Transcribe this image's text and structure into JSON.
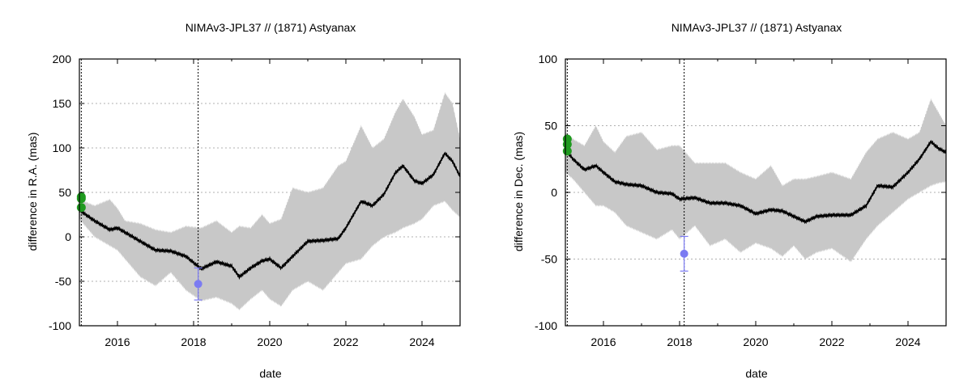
{
  "chart_data": [
    {
      "type": "line",
      "title": "NIMAv3-JPL37 // (1871) Astyanax",
      "xlabel": "date",
      "ylabel": "difference in R.A. (mas)",
      "xlim": [
        2015.0,
        2025.0
      ],
      "ylim": [
        -100,
        200
      ],
      "xticks": [
        2016,
        2018,
        2020,
        2022,
        2024
      ],
      "yticks": [
        -100,
        -50,
        0,
        50,
        100,
        150,
        200
      ],
      "grid": true,
      "vlines": [
        2015.05,
        2018.12
      ],
      "curve_x": [
        2015.0,
        2015.4,
        2015.8,
        2016.0,
        2016.2,
        2016.6,
        2017.0,
        2017.4,
        2017.8,
        2018.2,
        2018.6,
        2019.0,
        2019.2,
        2019.5,
        2019.8,
        2020.0,
        2020.3,
        2020.6,
        2021.0,
        2021.4,
        2021.8,
        2022.0,
        2022.4,
        2022.7,
        2023.0,
        2023.3,
        2023.5,
        2023.8,
        2024.0,
        2024.3,
        2024.6,
        2024.8,
        2025.0
      ],
      "curve_y": [
        30,
        18,
        8,
        10,
        5,
        -5,
        -15,
        -16,
        -22,
        -36,
        -28,
        -33,
        -45,
        -35,
        -27,
        -25,
        -35,
        -22,
        -5,
        -4,
        -2,
        10,
        40,
        35,
        48,
        72,
        80,
        63,
        60,
        70,
        94,
        85,
        68
      ],
      "band_upper": [
        42,
        35,
        42,
        32,
        18,
        15,
        8,
        5,
        12,
        10,
        18,
        5,
        12,
        10,
        25,
        15,
        20,
        55,
        50,
        55,
        80,
        85,
        125,
        100,
        110,
        140,
        155,
        135,
        115,
        120,
        162,
        150,
        110
      ],
      "band_lower": [
        20,
        0,
        -10,
        -15,
        -25,
        -45,
        -55,
        -40,
        -60,
        -72,
        -68,
        -75,
        -82,
        -70,
        -60,
        -70,
        -78,
        -60,
        -50,
        -60,
        -40,
        -30,
        -25,
        -10,
        0,
        5,
        10,
        15,
        20,
        35,
        40,
        30,
        22
      ],
      "observations_green": [
        {
          "x": 2015.05,
          "y": 45
        },
        {
          "x": 2015.05,
          "y": 43
        },
        {
          "x": 2015.05,
          "y": 33
        }
      ],
      "observations_blue": [
        {
          "x": 2018.12,
          "y": -53,
          "err": 18
        }
      ]
    },
    {
      "type": "line",
      "title": "NIMAv3-JPL37 // (1871) Astyanax",
      "xlabel": "date",
      "ylabel": "difference in Dec. (mas)",
      "xlim": [
        2015.0,
        2025.0
      ],
      "ylim": [
        -100,
        100
      ],
      "xticks": [
        2016,
        2018,
        2020,
        2022,
        2024
      ],
      "yticks": [
        -100,
        -50,
        0,
        50,
        100
      ],
      "grid": true,
      "vlines": [
        2015.05,
        2018.12
      ],
      "curve_x": [
        2015.0,
        2015.2,
        2015.5,
        2015.8,
        2016.0,
        2016.3,
        2016.6,
        2017.0,
        2017.4,
        2017.8,
        2018.0,
        2018.4,
        2018.8,
        2019.2,
        2019.6,
        2020.0,
        2020.4,
        2020.7,
        2021.0,
        2021.3,
        2021.6,
        2022.0,
        2022.5,
        2022.9,
        2023.2,
        2023.6,
        2024.0,
        2024.3,
        2024.6,
        2024.8,
        2025.0
      ],
      "curve_y": [
        32,
        25,
        17,
        20,
        15,
        8,
        6,
        5,
        0,
        -1,
        -5,
        -4,
        -8,
        -8,
        -10,
        -16,
        -13,
        -14,
        -18,
        -22,
        -18,
        -17,
        -17,
        -10,
        5,
        4,
        15,
        25,
        38,
        33,
        30
      ],
      "band_upper": [
        45,
        40,
        35,
        50,
        38,
        30,
        42,
        45,
        32,
        35,
        35,
        22,
        22,
        22,
        15,
        10,
        20,
        5,
        10,
        10,
        12,
        15,
        10,
        30,
        40,
        45,
        40,
        45,
        70,
        60,
        50
      ],
      "band_lower": [
        15,
        10,
        0,
        -10,
        -10,
        -15,
        -25,
        -30,
        -35,
        -28,
        -35,
        -25,
        -40,
        -35,
        -45,
        -38,
        -42,
        -48,
        -40,
        -50,
        -45,
        -42,
        -52,
        -35,
        -25,
        -15,
        -5,
        0,
        5,
        7,
        8
      ],
      "observations_green": [
        {
          "x": 2015.05,
          "y": 40
        },
        {
          "x": 2015.05,
          "y": 36
        },
        {
          "x": 2015.05,
          "y": 31
        }
      ],
      "observations_blue": [
        {
          "x": 2018.12,
          "y": -46,
          "err": 13
        }
      ]
    }
  ],
  "colors": {
    "band": "#c8c8c8",
    "curve": "#000000",
    "green_obs": "#1f9a1f",
    "blue_obs": "#7b7bf2",
    "grid": "#b0b0b0"
  }
}
